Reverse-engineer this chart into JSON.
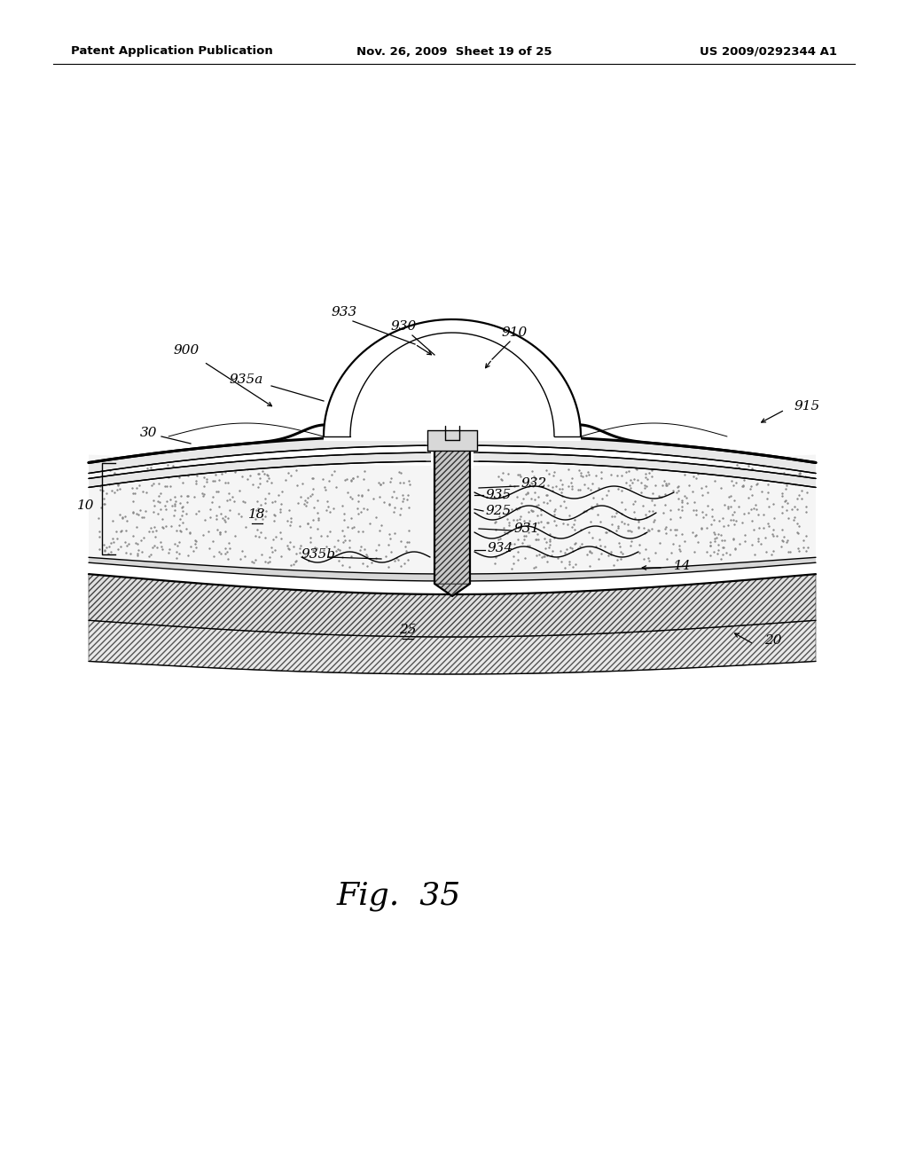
{
  "bg_color": "#ffffff",
  "header_left": "Patent Application Publication",
  "header_mid": "Nov. 26, 2009  Sheet 19 of 25",
  "header_right": "US 2009/0292344 A1",
  "fig_label": "Fig.  35"
}
